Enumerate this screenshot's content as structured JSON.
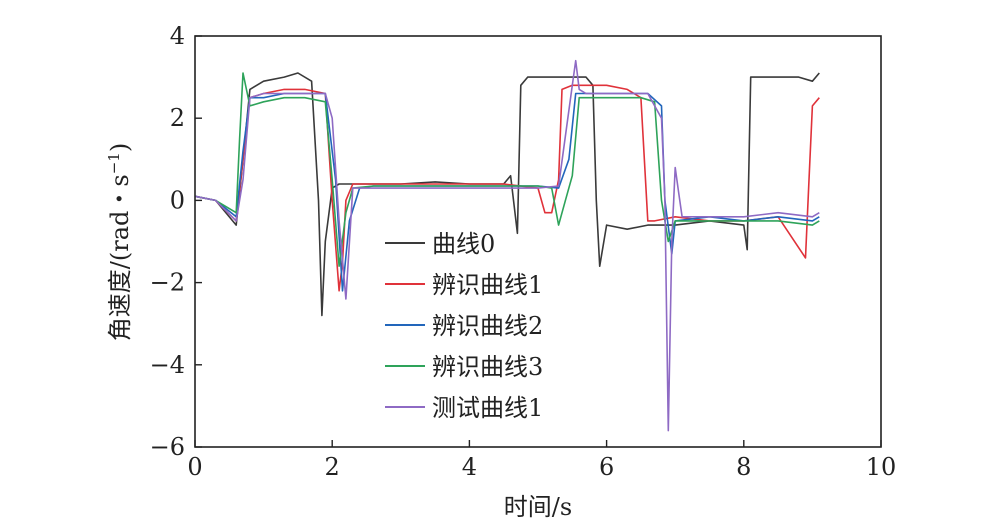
{
  "chart_data": {
    "type": "line",
    "xlabel": "时间/s",
    "ylabel_main": "角速度/(rad・s",
    "ylabel_sup": "−1",
    "ylabel_close": ")",
    "xlim": [
      0,
      10
    ],
    "ylim": [
      -6,
      4
    ],
    "xticks": [
      0,
      2,
      4,
      6,
      8,
      10
    ],
    "yticks": [
      -6,
      -4,
      -2,
      0,
      2,
      4
    ],
    "xtick_labels": [
      "0",
      "2",
      "4",
      "6",
      "8",
      "10"
    ],
    "ytick_labels": [
      "−6",
      "−4",
      "−2",
      "0",
      "2",
      "4"
    ],
    "grid": false,
    "legend_position": "center-left",
    "series": [
      {
        "name": "曲线0",
        "color": "#3a3a3a",
        "x": [
          0.0,
          0.3,
          0.6,
          0.7,
          0.8,
          1.0,
          1.3,
          1.5,
          1.7,
          1.8,
          1.85,
          1.9,
          2.0,
          2.1,
          2.3,
          2.6,
          3.0,
          3.5,
          4.0,
          4.5,
          4.6,
          4.7,
          4.75,
          4.85,
          5.0,
          5.3,
          5.5,
          5.7,
          5.8,
          5.85,
          5.9,
          6.0,
          6.3,
          6.6,
          7.0,
          7.5,
          8.0,
          8.05,
          8.1,
          8.2,
          8.5,
          8.8,
          9.0,
          9.1
        ],
        "y": [
          0.1,
          0.0,
          -0.6,
          1.0,
          2.7,
          2.9,
          3.0,
          3.1,
          2.9,
          0.0,
          -2.8,
          -1.0,
          0.3,
          0.4,
          0.4,
          0.4,
          0.4,
          0.45,
          0.4,
          0.4,
          0.6,
          -0.8,
          2.8,
          3.0,
          3.0,
          3.0,
          3.0,
          3.0,
          2.8,
          0.0,
          -1.6,
          -0.6,
          -0.7,
          -0.6,
          -0.6,
          -0.5,
          -0.6,
          -1.2,
          3.0,
          3.0,
          3.0,
          3.0,
          2.9,
          3.1
        ]
      },
      {
        "name": "辨识曲线1",
        "color": "#e0323a",
        "x": [
          0.0,
          0.3,
          0.6,
          0.7,
          0.8,
          1.0,
          1.3,
          1.6,
          1.9,
          2.0,
          2.1,
          2.15,
          2.2,
          2.3,
          2.6,
          3.0,
          3.5,
          4.0,
          4.5,
          5.0,
          5.1,
          5.2,
          5.3,
          5.35,
          5.5,
          5.8,
          6.0,
          6.3,
          6.5,
          6.6,
          6.7,
          7.0,
          7.5,
          8.0,
          8.5,
          8.9,
          8.95,
          9.0,
          9.1
        ],
        "y": [
          0.1,
          0.0,
          -0.5,
          1.0,
          2.5,
          2.6,
          2.7,
          2.7,
          2.6,
          0.0,
          -2.2,
          -1.5,
          0.0,
          0.4,
          0.4,
          0.4,
          0.4,
          0.4,
          0.4,
          0.3,
          -0.3,
          -0.3,
          0.5,
          2.7,
          2.8,
          2.8,
          2.8,
          2.7,
          2.5,
          -0.5,
          -0.5,
          -0.4,
          -0.5,
          -0.5,
          -0.4,
          -1.4,
          0.5,
          2.3,
          2.5
        ]
      },
      {
        "name": "辨识曲线2",
        "color": "#2266bb",
        "x": [
          0.0,
          0.3,
          0.6,
          0.7,
          0.8,
          1.0,
          1.3,
          1.6,
          1.9,
          2.05,
          2.15,
          2.25,
          2.4,
          2.6,
          3.0,
          3.5,
          4.0,
          4.5,
          5.0,
          5.3,
          5.45,
          5.55,
          5.7,
          6.0,
          6.3,
          6.6,
          6.8,
          6.85,
          6.95,
          7.0,
          7.5,
          8.0,
          8.5,
          9.0,
          9.1
        ],
        "y": [
          0.1,
          0.0,
          -0.4,
          1.2,
          2.5,
          2.5,
          2.6,
          2.6,
          2.6,
          0.5,
          -2.2,
          -0.5,
          0.3,
          0.35,
          0.35,
          0.35,
          0.35,
          0.35,
          0.35,
          0.3,
          1.0,
          2.6,
          2.6,
          2.6,
          2.6,
          2.6,
          2.3,
          0.0,
          -1.3,
          -0.5,
          -0.4,
          -0.5,
          -0.4,
          -0.5,
          -0.4
        ]
      },
      {
        "name": "辨识曲线3",
        "color": "#2ea35a",
        "x": [
          0.0,
          0.3,
          0.6,
          0.65,
          0.7,
          0.8,
          1.0,
          1.3,
          1.6,
          1.9,
          2.0,
          2.1,
          2.2,
          2.3,
          2.6,
          3.0,
          3.5,
          4.0,
          4.5,
          5.0,
          5.2,
          5.3,
          5.4,
          5.5,
          5.6,
          5.9,
          6.2,
          6.5,
          6.7,
          6.8,
          6.9,
          7.0,
          7.5,
          8.0,
          8.5,
          9.0,
          9.1
        ],
        "y": [
          0.1,
          0.0,
          -0.3,
          1.5,
          3.1,
          2.3,
          2.4,
          2.5,
          2.5,
          2.4,
          0.5,
          -1.6,
          -0.3,
          0.3,
          0.35,
          0.35,
          0.35,
          0.35,
          0.35,
          0.35,
          0.3,
          -0.6,
          0.0,
          0.6,
          2.5,
          2.5,
          2.5,
          2.5,
          2.4,
          0.0,
          -1.0,
          -0.5,
          -0.5,
          -0.5,
          -0.5,
          -0.6,
          -0.5
        ]
      },
      {
        "name": "测试曲线1",
        "color": "#8e6ac4",
        "x": [
          0.0,
          0.3,
          0.6,
          0.7,
          0.8,
          1.0,
          1.3,
          1.6,
          1.9,
          2.0,
          2.1,
          2.2,
          2.3,
          2.6,
          3.0,
          3.5,
          4.0,
          4.5,
          5.0,
          5.3,
          5.5,
          5.55,
          5.6,
          5.7,
          6.0,
          6.3,
          6.6,
          6.8,
          6.85,
          6.9,
          6.95,
          7.0,
          7.05,
          7.1,
          7.5,
          8.0,
          8.5,
          9.0,
          9.1
        ],
        "y": [
          0.1,
          0.0,
          -0.5,
          0.5,
          2.5,
          2.6,
          2.6,
          2.6,
          2.6,
          2.0,
          -0.5,
          -2.4,
          0.3,
          0.3,
          0.3,
          0.3,
          0.3,
          0.3,
          0.3,
          0.35,
          2.8,
          3.4,
          2.7,
          2.6,
          2.6,
          2.6,
          2.6,
          2.0,
          0.0,
          -5.6,
          -1.0,
          0.8,
          0.2,
          -0.4,
          -0.4,
          -0.4,
          -0.3,
          -0.4,
          -0.3
        ]
      }
    ]
  }
}
